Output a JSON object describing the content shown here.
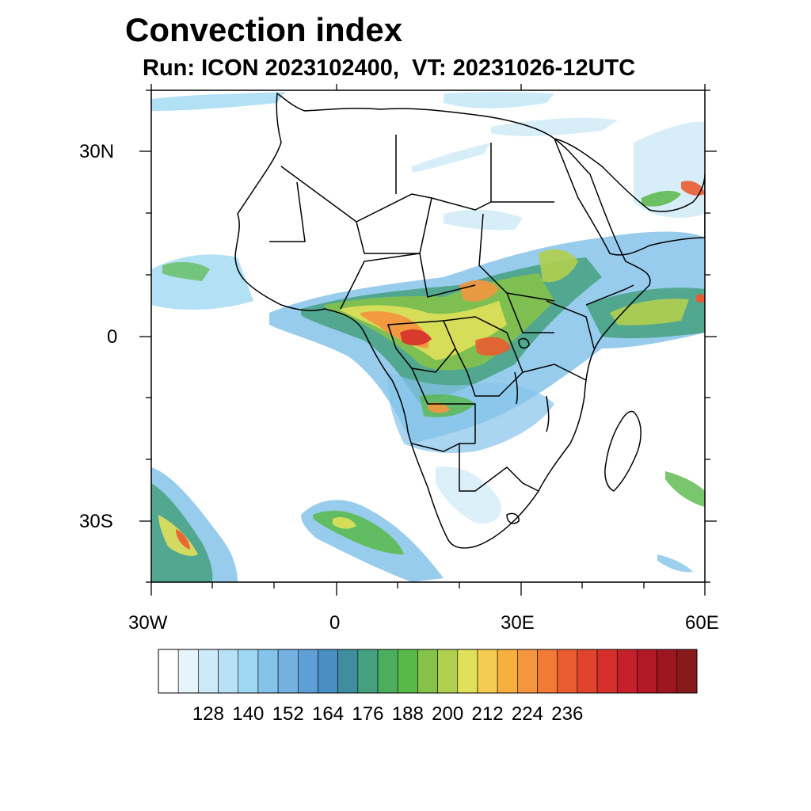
{
  "header": {
    "title": "Convection index",
    "subtitle": "Run: ICON 2023102400,  VT: 20231026-12UTC"
  },
  "map": {
    "lat_labels": [
      "30N",
      "0",
      "30S"
    ],
    "lon_labels": [
      "30W",
      "0",
      "30E",
      "60E"
    ],
    "lat_range": [
      -40,
      40
    ],
    "lon_range": [
      -30,
      60
    ]
  },
  "colorbar": {
    "tick_labels": [
      "128",
      "140",
      "152",
      "164",
      "176",
      "188",
      "200",
      "212",
      "224",
      "236"
    ],
    "colors": [
      "#ffffff",
      "#e6f4fc",
      "#cdeaf8",
      "#b7e2f6",
      "#9fd8f2",
      "#86c3ea",
      "#74b1e0",
      "#5e9fd6",
      "#4a8fc4",
      "#3f8ea0",
      "#44a07e",
      "#4aae5e",
      "#58b848",
      "#84c24a",
      "#b0cf4e",
      "#e0e05a",
      "#f5cc50",
      "#f7b040",
      "#f49640",
      "#f07a36",
      "#ea5c30",
      "#e1432d",
      "#d6302c",
      "#c6202a",
      "#b21826",
      "#9e1620",
      "#881a1c"
    ]
  }
}
